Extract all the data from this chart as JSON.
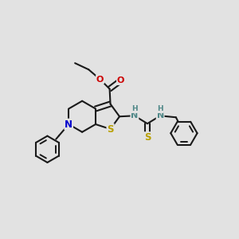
{
  "bg_color": "#e2e2e2",
  "bond_color": "#1a1a1a",
  "bond_lw": 1.5,
  "S_color": "#b8a000",
  "N_color": "#0000cc",
  "O_color": "#cc0000",
  "NH_color": "#508888",
  "figsize": [
    3.0,
    3.0
  ],
  "dpi": 100,
  "xlim": [
    0.0,
    1.0
  ],
  "ylim": [
    0.0,
    1.0
  ]
}
